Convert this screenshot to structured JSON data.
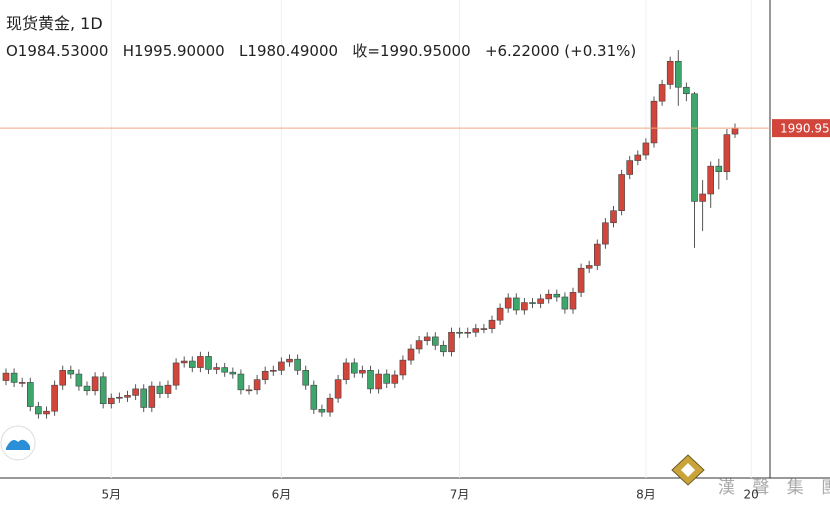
{
  "chart_data": {
    "type": "candlestick",
    "title": "现货黄金, 1D",
    "ohlc_header": [
      "O1984.53000",
      "H1995.90000",
      "L1980.49000",
      "收=1990.95000",
      "+6.22000 (+0.31%)"
    ],
    "watermark": "漢 聲 集 團",
    "up_color": "#d1453b",
    "down_color": "#3ea66b",
    "price_line_color": "#f0a780",
    "ylim": [
      1614,
      2129
    ],
    "categories": [
      null,
      null,
      null,
      null,
      null,
      null,
      null,
      null,
      null,
      null,
      null,
      null,
      null,
      "5月",
      null,
      null,
      null,
      null,
      null,
      null,
      null,
      null,
      null,
      null,
      null,
      null,
      null,
      null,
      null,
      null,
      null,
      null,
      null,
      null,
      "6月",
      null,
      null,
      null,
      null,
      null,
      null,
      null,
      null,
      null,
      null,
      null,
      null,
      null,
      null,
      null,
      null,
      null,
      null,
      null,
      null,
      null,
      "7月",
      null,
      null,
      null,
      null,
      null,
      null,
      null,
      null,
      null,
      null,
      null,
      null,
      null,
      null,
      null,
      null,
      null,
      null,
      null,
      null,
      null,
      null,
      "8月",
      null,
      null,
      null,
      null,
      null,
      null,
      null,
      null,
      null,
      null,
      null,
      null,
      "20"
    ],
    "open": [
      1719,
      1727,
      1717,
      1717,
      1691,
      1683,
      1686,
      1714,
      1730,
      1726,
      1713,
      1708,
      1723,
      1694,
      1700,
      1701,
      1703,
      1710,
      1690,
      1713,
      1705,
      1714,
      1738,
      1740,
      1733,
      1745,
      1731,
      1733,
      1728,
      1726,
      1709,
      1709,
      1720,
      1729,
      1730,
      1739,
      1742,
      1730,
      1714,
      1688,
      1685,
      1700,
      1720,
      1738,
      1727,
      1730,
      1710,
      1726,
      1716,
      1725,
      1741,
      1753,
      1762,
      1766,
      1757,
      1750,
      1771,
      1770,
      1771,
      1775,
      1775,
      1784,
      1797,
      1808,
      1795,
      1803,
      1802,
      1807,
      1812,
      1809,
      1796,
      1814,
      1840,
      1843,
      1866,
      1889,
      1902,
      1941,
      1956,
      1962,
      1975,
      2020,
      2038,
      2063,
      2035,
      2028,
      1912,
      1920,
      1950,
      1944,
      1984.53,
      null,
      null
    ],
    "high": [
      1732,
      1732,
      1722,
      1722,
      1696,
      1691,
      1719,
      1735,
      1735,
      1731,
      1718,
      1728,
      1728,
      1705,
      1706,
      1708,
      1715,
      1715,
      1718,
      1718,
      1719,
      1743,
      1745,
      1745,
      1750,
      1750,
      1738,
      1738,
      1733,
      1731,
      1714,
      1725,
      1734,
      1735,
      1744,
      1747,
      1747,
      1735,
      1719,
      1693,
      1705,
      1725,
      1743,
      1743,
      1735,
      1735,
      1731,
      1731,
      1730,
      1746,
      1758,
      1767,
      1771,
      1771,
      1762,
      1776,
      1776,
      1776,
      1780,
      1780,
      1789,
      1802,
      1813,
      1813,
      1808,
      1808,
      1812,
      1817,
      1817,
      1814,
      1819,
      1845,
      1848,
      1871,
      1894,
      1907,
      1946,
      1961,
      1967,
      1980,
      2025,
      2043,
      2068,
      2075,
      2040,
      2030,
      1935,
      1955,
      1958,
      1990,
      1995.9,
      null,
      null
    ],
    "low": [
      1714,
      1712,
      1712,
      1686,
      1678,
      1678,
      1681,
      1709,
      1721,
      1708,
      1703,
      1703,
      1689,
      1689,
      1695,
      1696,
      1698,
      1685,
      1685,
      1700,
      1700,
      1709,
      1733,
      1728,
      1728,
      1726,
      1726,
      1723,
      1721,
      1704,
      1704,
      1704,
      1715,
      1724,
      1725,
      1734,
      1725,
      1709,
      1683,
      1680,
      1680,
      1695,
      1715,
      1722,
      1722,
      1705,
      1705,
      1711,
      1711,
      1720,
      1736,
      1748,
      1757,
      1752,
      1745,
      1745,
      1765,
      1765,
      1766,
      1770,
      1770,
      1779,
      1792,
      1790,
      1790,
      1797,
      1797,
      1802,
      1804,
      1791,
      1791,
      1809,
      1835,
      1838,
      1861,
      1884,
      1897,
      1936,
      1951,
      1957,
      1970,
      2015,
      2033,
      2015,
      2020,
      1862,
      1880,
      1905,
      1925,
      1935,
      1980.49,
      null,
      null
    ],
    "close": [
      1727,
      1717,
      1717,
      1691,
      1683,
      1686,
      1714,
      1730,
      1726,
      1713,
      1708,
      1723,
      1694,
      1700,
      1701,
      1703,
      1710,
      1690,
      1713,
      1705,
      1714,
      1738,
      1740,
      1733,
      1745,
      1731,
      1733,
      1728,
      1726,
      1709,
      1709,
      1720,
      1729,
      1730,
      1739,
      1742,
      1730,
      1714,
      1688,
      1685,
      1700,
      1720,
      1738,
      1727,
      1730,
      1710,
      1726,
      1716,
      1725,
      1741,
      1753,
      1762,
      1766,
      1757,
      1750,
      1771,
      1770,
      1771,
      1775,
      1775,
      1784,
      1797,
      1808,
      1795,
      1803,
      1802,
      1807,
      1812,
      1809,
      1796,
      1814,
      1840,
      1843,
      1866,
      1889,
      1902,
      1941,
      1956,
      1962,
      1975,
      2020,
      2038,
      2063,
      2035,
      2028,
      1912,
      1920,
      1950,
      1944,
      1984,
      1990.95,
      null,
      null
    ]
  }
}
